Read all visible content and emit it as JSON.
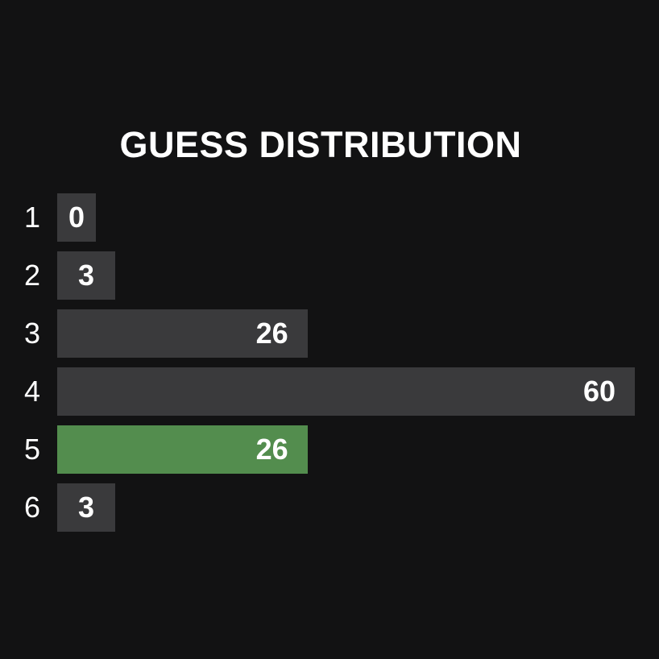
{
  "title": "GUESS DISTRIBUTION",
  "colors": {
    "background": "#121213",
    "bar": "#3a3a3c",
    "highlight": "#538d4e",
    "text": "#ffffff"
  },
  "chart_data": {
    "type": "bar",
    "orientation": "horizontal",
    "title": "GUESS DISTRIBUTION",
    "categories": [
      "1",
      "2",
      "3",
      "4",
      "5",
      "6"
    ],
    "values": [
      0,
      3,
      26,
      60,
      26,
      3
    ],
    "highlight_category": "5",
    "data_labels": [
      "0",
      "3",
      "26",
      "60",
      "26",
      "3"
    ]
  }
}
